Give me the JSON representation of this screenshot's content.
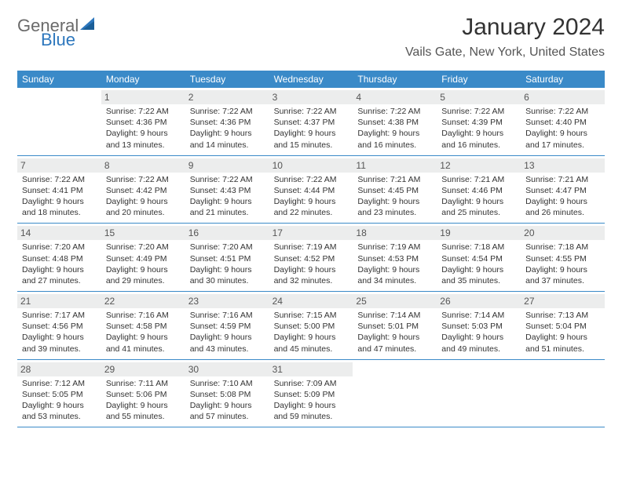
{
  "colors": {
    "header_bg": "#3a8ac8",
    "header_text": "#ffffff",
    "daynum_bg": "#eceded",
    "week_divider": "#3a8ac8",
    "body_text": "#333333",
    "page_bg": "#ffffff",
    "logo_gray": "#6a6a6a",
    "logo_blue": "#2d77bd"
  },
  "logo": {
    "word1": "General",
    "word2": "Blue"
  },
  "title": {
    "month": "January 2024",
    "location": "Vails Gate, New York, United States"
  },
  "day_labels": [
    "Sunday",
    "Monday",
    "Tuesday",
    "Wednesday",
    "Thursday",
    "Friday",
    "Saturday"
  ],
  "weeks": [
    [
      {
        "blank": true
      },
      {
        "num": "1",
        "sunrise": "Sunrise: 7:22 AM",
        "sunset": "Sunset: 4:36 PM",
        "day1": "Daylight: 9 hours",
        "day2": "and 13 minutes."
      },
      {
        "num": "2",
        "sunrise": "Sunrise: 7:22 AM",
        "sunset": "Sunset: 4:36 PM",
        "day1": "Daylight: 9 hours",
        "day2": "and 14 minutes."
      },
      {
        "num": "3",
        "sunrise": "Sunrise: 7:22 AM",
        "sunset": "Sunset: 4:37 PM",
        "day1": "Daylight: 9 hours",
        "day2": "and 15 minutes."
      },
      {
        "num": "4",
        "sunrise": "Sunrise: 7:22 AM",
        "sunset": "Sunset: 4:38 PM",
        "day1": "Daylight: 9 hours",
        "day2": "and 16 minutes."
      },
      {
        "num": "5",
        "sunrise": "Sunrise: 7:22 AM",
        "sunset": "Sunset: 4:39 PM",
        "day1": "Daylight: 9 hours",
        "day2": "and 16 minutes."
      },
      {
        "num": "6",
        "sunrise": "Sunrise: 7:22 AM",
        "sunset": "Sunset: 4:40 PM",
        "day1": "Daylight: 9 hours",
        "day2": "and 17 minutes."
      }
    ],
    [
      {
        "num": "7",
        "sunrise": "Sunrise: 7:22 AM",
        "sunset": "Sunset: 4:41 PM",
        "day1": "Daylight: 9 hours",
        "day2": "and 18 minutes."
      },
      {
        "num": "8",
        "sunrise": "Sunrise: 7:22 AM",
        "sunset": "Sunset: 4:42 PM",
        "day1": "Daylight: 9 hours",
        "day2": "and 20 minutes."
      },
      {
        "num": "9",
        "sunrise": "Sunrise: 7:22 AM",
        "sunset": "Sunset: 4:43 PM",
        "day1": "Daylight: 9 hours",
        "day2": "and 21 minutes."
      },
      {
        "num": "10",
        "sunrise": "Sunrise: 7:22 AM",
        "sunset": "Sunset: 4:44 PM",
        "day1": "Daylight: 9 hours",
        "day2": "and 22 minutes."
      },
      {
        "num": "11",
        "sunrise": "Sunrise: 7:21 AM",
        "sunset": "Sunset: 4:45 PM",
        "day1": "Daylight: 9 hours",
        "day2": "and 23 minutes."
      },
      {
        "num": "12",
        "sunrise": "Sunrise: 7:21 AM",
        "sunset": "Sunset: 4:46 PM",
        "day1": "Daylight: 9 hours",
        "day2": "and 25 minutes."
      },
      {
        "num": "13",
        "sunrise": "Sunrise: 7:21 AM",
        "sunset": "Sunset: 4:47 PM",
        "day1": "Daylight: 9 hours",
        "day2": "and 26 minutes."
      }
    ],
    [
      {
        "num": "14",
        "sunrise": "Sunrise: 7:20 AM",
        "sunset": "Sunset: 4:48 PM",
        "day1": "Daylight: 9 hours",
        "day2": "and 27 minutes."
      },
      {
        "num": "15",
        "sunrise": "Sunrise: 7:20 AM",
        "sunset": "Sunset: 4:49 PM",
        "day1": "Daylight: 9 hours",
        "day2": "and 29 minutes."
      },
      {
        "num": "16",
        "sunrise": "Sunrise: 7:20 AM",
        "sunset": "Sunset: 4:51 PM",
        "day1": "Daylight: 9 hours",
        "day2": "and 30 minutes."
      },
      {
        "num": "17",
        "sunrise": "Sunrise: 7:19 AM",
        "sunset": "Sunset: 4:52 PM",
        "day1": "Daylight: 9 hours",
        "day2": "and 32 minutes."
      },
      {
        "num": "18",
        "sunrise": "Sunrise: 7:19 AM",
        "sunset": "Sunset: 4:53 PM",
        "day1": "Daylight: 9 hours",
        "day2": "and 34 minutes."
      },
      {
        "num": "19",
        "sunrise": "Sunrise: 7:18 AM",
        "sunset": "Sunset: 4:54 PM",
        "day1": "Daylight: 9 hours",
        "day2": "and 35 minutes."
      },
      {
        "num": "20",
        "sunrise": "Sunrise: 7:18 AM",
        "sunset": "Sunset: 4:55 PM",
        "day1": "Daylight: 9 hours",
        "day2": "and 37 minutes."
      }
    ],
    [
      {
        "num": "21",
        "sunrise": "Sunrise: 7:17 AM",
        "sunset": "Sunset: 4:56 PM",
        "day1": "Daylight: 9 hours",
        "day2": "and 39 minutes."
      },
      {
        "num": "22",
        "sunrise": "Sunrise: 7:16 AM",
        "sunset": "Sunset: 4:58 PM",
        "day1": "Daylight: 9 hours",
        "day2": "and 41 minutes."
      },
      {
        "num": "23",
        "sunrise": "Sunrise: 7:16 AM",
        "sunset": "Sunset: 4:59 PM",
        "day1": "Daylight: 9 hours",
        "day2": "and 43 minutes."
      },
      {
        "num": "24",
        "sunrise": "Sunrise: 7:15 AM",
        "sunset": "Sunset: 5:00 PM",
        "day1": "Daylight: 9 hours",
        "day2": "and 45 minutes."
      },
      {
        "num": "25",
        "sunrise": "Sunrise: 7:14 AM",
        "sunset": "Sunset: 5:01 PM",
        "day1": "Daylight: 9 hours",
        "day2": "and 47 minutes."
      },
      {
        "num": "26",
        "sunrise": "Sunrise: 7:14 AM",
        "sunset": "Sunset: 5:03 PM",
        "day1": "Daylight: 9 hours",
        "day2": "and 49 minutes."
      },
      {
        "num": "27",
        "sunrise": "Sunrise: 7:13 AM",
        "sunset": "Sunset: 5:04 PM",
        "day1": "Daylight: 9 hours",
        "day2": "and 51 minutes."
      }
    ],
    [
      {
        "num": "28",
        "sunrise": "Sunrise: 7:12 AM",
        "sunset": "Sunset: 5:05 PM",
        "day1": "Daylight: 9 hours",
        "day2": "and 53 minutes."
      },
      {
        "num": "29",
        "sunrise": "Sunrise: 7:11 AM",
        "sunset": "Sunset: 5:06 PM",
        "day1": "Daylight: 9 hours",
        "day2": "and 55 minutes."
      },
      {
        "num": "30",
        "sunrise": "Sunrise: 7:10 AM",
        "sunset": "Sunset: 5:08 PM",
        "day1": "Daylight: 9 hours",
        "day2": "and 57 minutes."
      },
      {
        "num": "31",
        "sunrise": "Sunrise: 7:09 AM",
        "sunset": "Sunset: 5:09 PM",
        "day1": "Daylight: 9 hours",
        "day2": "and 59 minutes."
      },
      {
        "blank": true
      },
      {
        "blank": true
      },
      {
        "blank": true
      }
    ]
  ]
}
